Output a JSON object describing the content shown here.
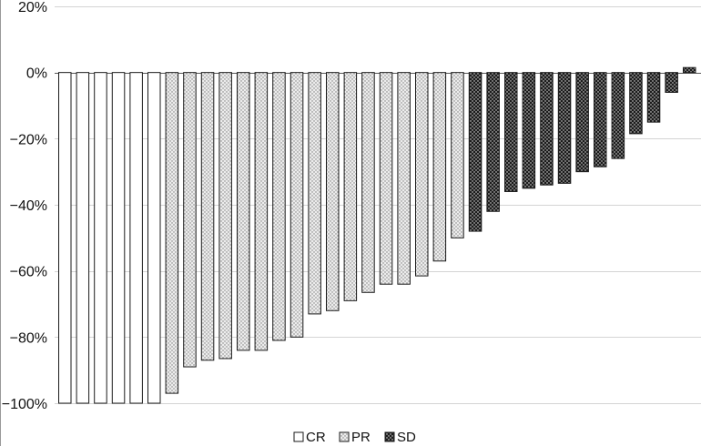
{
  "chart_data": {
    "type": "bar",
    "title": "",
    "xlabel": "",
    "ylabel": "",
    "ylim": [
      -100,
      20
    ],
    "yticks": [
      20,
      0,
      -20,
      -40,
      -60,
      -80,
      -100
    ],
    "ytick_labels": [
      "20%",
      "0%",
      "−20%",
      "−40%",
      "−60%",
      "−80%",
      "−100%"
    ],
    "grid": true,
    "legend_position": "bottom-center",
    "legend": [
      {
        "label": "CR",
        "pattern": "blank"
      },
      {
        "label": "PR",
        "pattern": "light-dots"
      },
      {
        "label": "SD",
        "pattern": "dark-dots"
      }
    ],
    "series": [
      {
        "name": "CR",
        "values": [
          -100,
          -100,
          -100,
          -100,
          -100,
          -100
        ]
      },
      {
        "name": "PR",
        "values": [
          -97,
          -89,
          -87,
          -86.5,
          -84,
          -84,
          -81,
          -80,
          -73,
          -72,
          -69,
          -66.5,
          -64,
          -64,
          -61.5,
          -57,
          -50
        ]
      },
      {
        "name": "SD",
        "values": [
          -48,
          -42,
          -36,
          -35,
          -34,
          -33.5,
          -30,
          -28.5,
          -26,
          -18.5,
          -15,
          -6,
          1.5
        ]
      }
    ],
    "colors": {
      "outline": "#1a1a1a",
      "grid": "#d4d4d4",
      "axis": "#555555",
      "frame": "#9a9a9a"
    }
  }
}
